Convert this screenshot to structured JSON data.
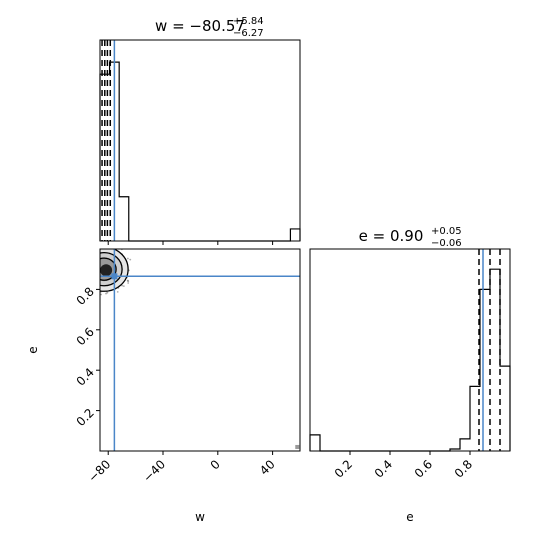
{
  "chart_data": {
    "type": "corner",
    "parameters": [
      "w",
      "e"
    ],
    "truth": {
      "w": -75.5,
      "e": 0.865
    },
    "truth_color": "#4a86c8",
    "panels": [
      {
        "id": "w-hist",
        "type": "histogram",
        "parameter": "w",
        "title": {
          "prefix": "w = ",
          "median": "−80.57",
          "upper": "+5.84",
          "lower": "−6.27"
        },
        "xlim": [
          -86,
          60
        ],
        "bin_edges": [
          -86,
          -79,
          -72,
          -65,
          53,
          60
        ],
        "counts": [
          0.83,
          0.89,
          0.22,
          0,
          0.06
        ],
        "quantile_lines": [
          -84.5,
          -82.5,
          -80.6,
          -78.5
        ],
        "xticks": [
          -80,
          -40,
          0,
          40
        ],
        "xticklabels": []
      },
      {
        "id": "e-hist",
        "type": "histogram",
        "parameter": "e",
        "title": {
          "prefix": "e = ",
          "median": "0.90",
          "upper": "+0.05",
          "lower": "−0.06"
        },
        "xlim": [
          0,
          1
        ],
        "bin_edges": [
          0,
          0.05,
          0.7,
          0.75,
          0.8,
          0.85,
          0.9,
          0.95,
          1.0
        ],
        "counts": [
          0.08,
          0,
          0.01,
          0.06,
          0.32,
          0.8,
          0.9,
          0.42
        ],
        "quantile_lines": [
          0.845,
          0.9,
          0.95
        ],
        "xticks": [
          0.2,
          0.4,
          0.6,
          0.8
        ],
        "xticklabels": [
          "0.2",
          "0.4",
          "0.6",
          "0.8"
        ],
        "xlabel": "e"
      },
      {
        "id": "w-e-2d",
        "type": "density",
        "x": "w",
        "y": "e",
        "xlim": [
          -86,
          60
        ],
        "ylim": [
          0,
          1
        ],
        "xticks": [
          -80,
          -40,
          0,
          40
        ],
        "xticklabels": [
          "−80",
          "−40",
          "0",
          "40"
        ],
        "yticks": [
          0.2,
          0.4,
          0.6,
          0.8
        ],
        "yticklabels": [
          "0.2",
          "0.4",
          "0.6",
          "0.8"
        ],
        "xlabel": "w",
        "ylabel": "e",
        "density_center": {
          "w": -83,
          "e": 0.9
        },
        "outlier": {
          "w": 58,
          "e": 0.02
        }
      }
    ]
  }
}
